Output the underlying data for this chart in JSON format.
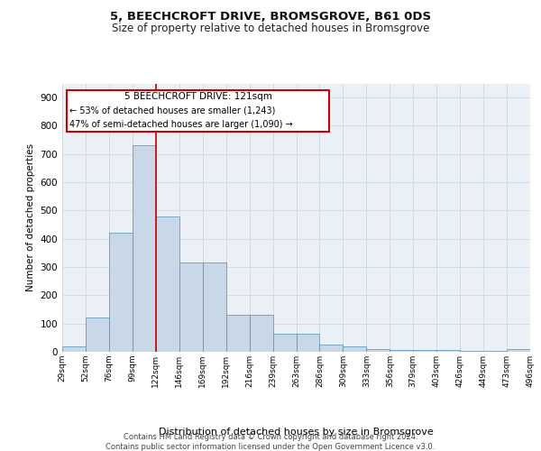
{
  "title1": "5, BEECHCROFT DRIVE, BROMSGROVE, B61 0DS",
  "title2": "Size of property relative to detached houses in Bromsgrove",
  "xlabel": "Distribution of detached houses by size in Bromsgrove",
  "ylabel": "Number of detached properties",
  "bar_values": [
    20,
    120,
    420,
    730,
    480,
    315,
    315,
    130,
    130,
    65,
    65,
    25,
    20,
    10,
    5,
    5,
    5,
    2,
    2,
    8
  ],
  "bar_color": "#c8d8e8",
  "bar_edge_color": "#5590b0",
  "categories": [
    "29sqm",
    "52sqm",
    "76sqm",
    "99sqm",
    "122sqm",
    "146sqm",
    "169sqm",
    "192sqm",
    "216sqm",
    "239sqm",
    "263sqm",
    "286sqm",
    "309sqm",
    "333sqm",
    "356sqm",
    "379sqm",
    "403sqm",
    "426sqm",
    "449sqm",
    "473sqm",
    "496sqm"
  ],
  "ylim": [
    0,
    950
  ],
  "yticks": [
    0,
    100,
    200,
    300,
    400,
    500,
    600,
    700,
    800,
    900
  ],
  "property_line_x": 4,
  "property_line_label": "5 BEECHCROFT DRIVE: 121sqm",
  "annotation_line1": "← 53% of detached houses are smaller (1,243)",
  "annotation_line2": "47% of semi-detached houses are larger (1,090) →",
  "red_color": "#cc0000",
  "grid_color": "#d0dce8",
  "background_color": "#ffffff",
  "plot_bg_color": "#eaf0f6",
  "footer1": "Contains HM Land Registry data © Crown copyright and database right 2024.",
  "footer2": "Contains public sector information licensed under the Open Government Licence v3.0."
}
